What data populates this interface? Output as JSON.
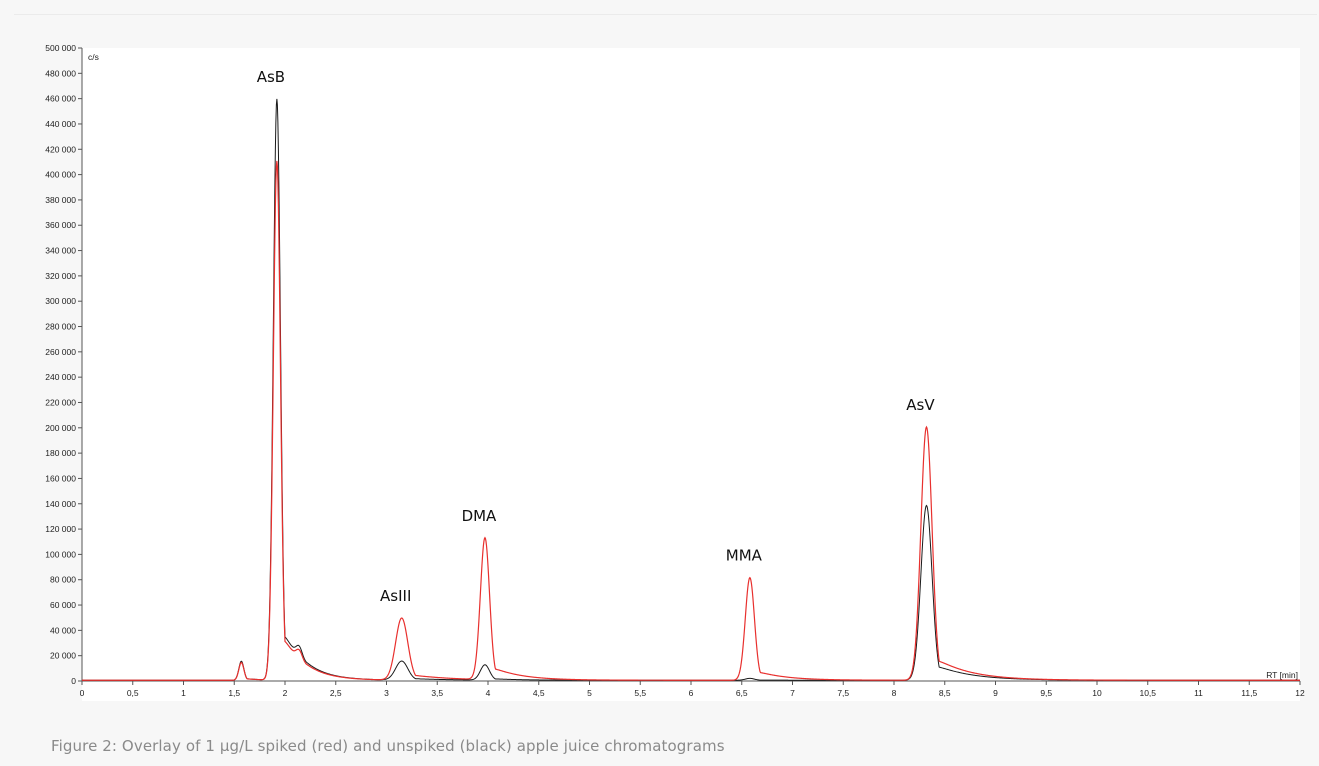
{
  "caption": "Figure 2: Overlay of 1 µg/L spiked (red) and unspiked (black) apple juice chromatograms",
  "chart_data": {
    "type": "line",
    "xlabel": "RT [min]",
    "ylabel": "c/s",
    "xlim": [
      0,
      12
    ],
    "ylim": [
      0,
      500000
    ],
    "x_ticks": [
      "0",
      "0,5",
      "1",
      "1,5",
      "2",
      "2,5",
      "3",
      "3,5",
      "4",
      "4,5",
      "5",
      "5,5",
      "6",
      "6,5",
      "7",
      "7,5",
      "8",
      "8,5",
      "9",
      "9,5",
      "10",
      "10,5",
      "11",
      "11,5",
      "12"
    ],
    "y_ticks": [
      "0",
      "20 000",
      "40 000",
      "60 000",
      "80 000",
      "100 000",
      "120 000",
      "140 000",
      "160 000",
      "180 000",
      "200 000",
      "220 000",
      "240 000",
      "260 000",
      "280 000",
      "300 000",
      "320 000",
      "340 000",
      "360 000",
      "380 000",
      "400 000",
      "420 000",
      "440 000",
      "460 000",
      "480 000",
      "500 000"
    ],
    "grid": false,
    "colors": {
      "spiked": "#e8302e",
      "unspiked": "#1a1a1a",
      "axis": "#555555"
    },
    "peaks": [
      {
        "label": "AsB",
        "rt": 1.92,
        "spiked": 410000,
        "unspiked": 459000,
        "sigma": 0.035
      },
      {
        "label": "AsIII",
        "rt": 3.15,
        "spiked": 49000,
        "unspiked": 15000,
        "sigma": 0.06
      },
      {
        "label": "DMA",
        "rt": 3.97,
        "spiked": 112000,
        "unspiked": 12000,
        "sigma": 0.045
      },
      {
        "label": "MMA",
        "rt": 6.58,
        "spiked": 81000,
        "unspiked": 1500,
        "sigma": 0.045
      },
      {
        "label": "AsV",
        "rt": 8.32,
        "spiked": 200000,
        "unspiked": 138000,
        "sigma": 0.055
      }
    ],
    "minor_peaks": [
      {
        "rt": 1.57,
        "spiked": 14000,
        "unspiked": 15000,
        "sigma": 0.025
      },
      {
        "rt": 2.14,
        "spiked": 7000,
        "unspiked": 8000,
        "sigma": 0.03
      }
    ]
  }
}
